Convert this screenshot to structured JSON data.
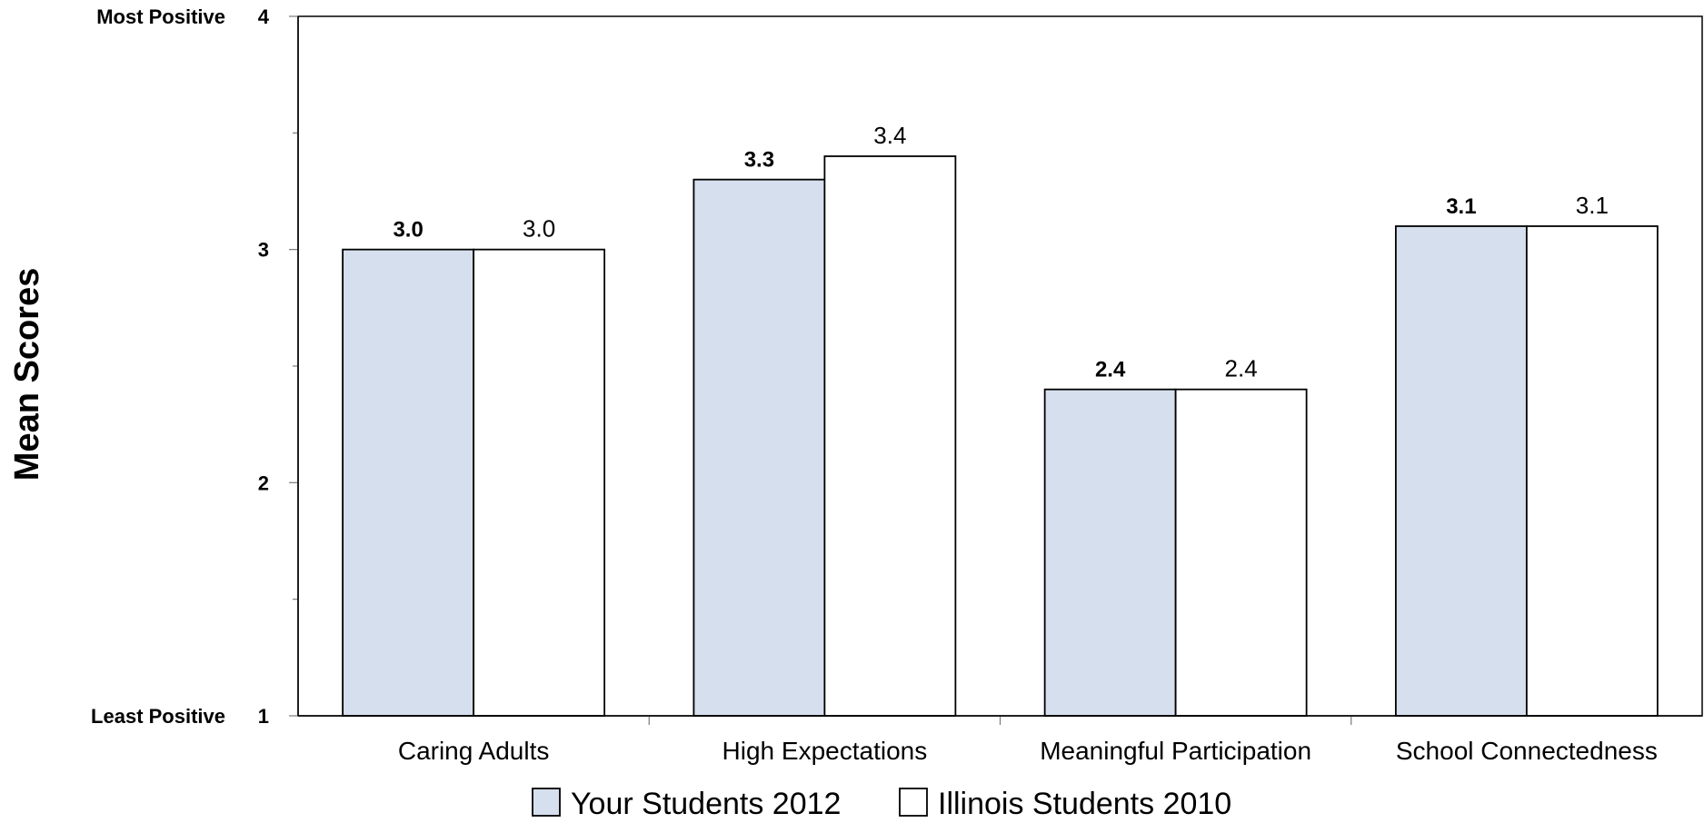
{
  "chart_data": {
    "type": "bar",
    "title": "",
    "xlabel": "",
    "ylabel": "Mean Scores",
    "ylim": [
      1,
      4
    ],
    "yticks": [
      {
        "value": 1,
        "label": "1",
        "desc": "Least Positive"
      },
      {
        "value": 2,
        "label": "2",
        "desc": ""
      },
      {
        "value": 3,
        "label": "3",
        "desc": ""
      },
      {
        "value": 4,
        "label": "4",
        "desc": "Most Positive"
      }
    ],
    "categories": [
      "Caring Adults",
      "High Expectations",
      "Meaningful Participation",
      "School Connectedness"
    ],
    "series": [
      {
        "name": "Your Students 2012",
        "values": [
          3.0,
          3.3,
          2.4,
          3.1
        ],
        "labels": [
          "3.0",
          "3.3",
          "2.4",
          "3.1"
        ],
        "color": "#d6dfed"
      },
      {
        "name": "Illinois Students 2010",
        "values": [
          3.0,
          3.4,
          2.4,
          3.1
        ],
        "labels": [
          "3.0",
          "3.4",
          "2.4",
          "3.1"
        ],
        "color": "#ffffff"
      }
    ],
    "legend_position": "bottom-center",
    "grid": false
  }
}
